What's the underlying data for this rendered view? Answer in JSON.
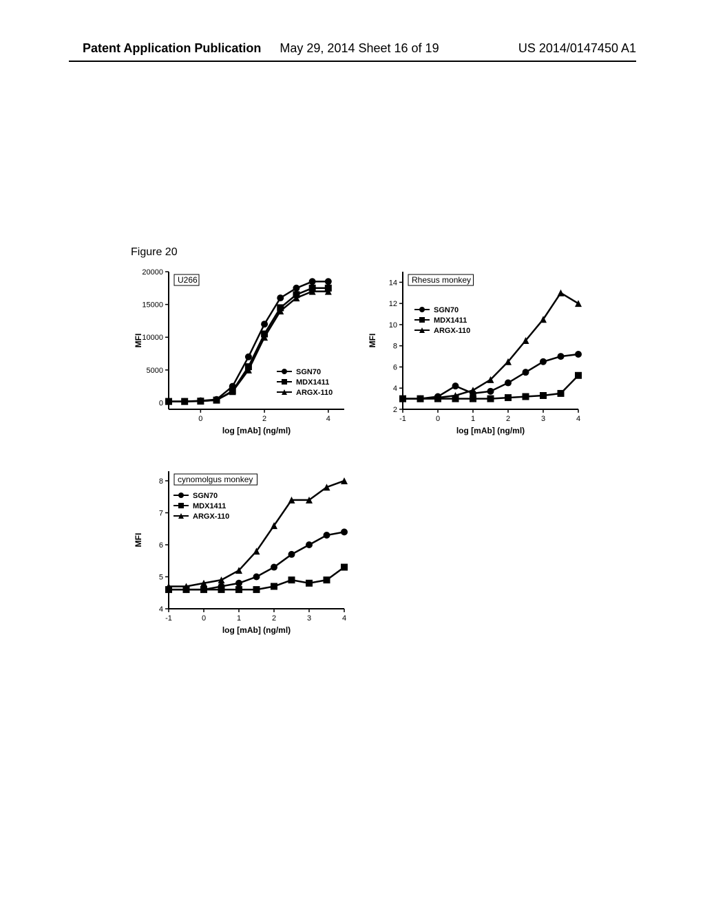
{
  "header": {
    "left": "Patent Application Publication",
    "mid": "May 29, 2014  Sheet 16 of 19",
    "right": "US 2014/0147450 A1"
  },
  "figure_label": "Figure 20",
  "common": {
    "xlabel": "log [mAb] (ng/ml)",
    "ylabel": "MFI",
    "legend_items": [
      "SGN70",
      "MDX1411",
      "ARGX-110"
    ],
    "legend_markers": [
      "circle",
      "square",
      "triangle"
    ],
    "line_color": "#000000",
    "line_width": 2.5,
    "marker_size": 5,
    "background": "#ffffff",
    "tick_color": "#000000",
    "tick_fontsize": 11,
    "label_fontsize": 12,
    "label_fontweight": "bold"
  },
  "charts": [
    {
      "id": "u266",
      "title": "U266",
      "xlim": [
        -1,
        4.5
      ],
      "xticks": [
        0,
        2,
        4
      ],
      "ylim": [
        -1000,
        20000
      ],
      "yticks": [
        0,
        5000,
        10000,
        15000,
        20000
      ],
      "legend_pos": "bottom-right",
      "series": [
        {
          "name": "SGN70",
          "marker": "circle",
          "x": [
            -1,
            -0.5,
            0,
            0.5,
            1,
            1.5,
            2,
            2.5,
            3,
            3.5,
            4
          ],
          "y": [
            200,
            200,
            300,
            500,
            2500,
            7000,
            12000,
            16000,
            17500,
            18500,
            18500
          ]
        },
        {
          "name": "MDX1411",
          "marker": "square",
          "x": [
            -1,
            -0.5,
            0,
            0.5,
            1,
            1.5,
            2,
            2.5,
            3,
            3.5,
            4
          ],
          "y": [
            200,
            200,
            250,
            400,
            1800,
            5500,
            10500,
            14500,
            16500,
            17500,
            17500
          ]
        },
        {
          "name": "ARGX-110",
          "marker": "triangle",
          "x": [
            -1,
            -0.5,
            0,
            0.5,
            1,
            1.5,
            2,
            2.5,
            3,
            3.5,
            4
          ],
          "y": [
            200,
            200,
            250,
            400,
            1700,
            5000,
            10000,
            14000,
            16000,
            17000,
            17000
          ]
        }
      ]
    },
    {
      "id": "rhesus",
      "title": "Rhesus monkey",
      "xlim": [
        -1,
        4
      ],
      "xticks": [
        -1,
        0,
        1,
        2,
        3,
        4
      ],
      "ylim": [
        2,
        15
      ],
      "yticks": [
        2,
        4,
        6,
        8,
        10,
        12,
        14
      ],
      "legend_pos": "mid-left",
      "series": [
        {
          "name": "SGN70",
          "marker": "circle",
          "x": [
            -1,
            -0.5,
            0,
            0.5,
            1,
            1.5,
            2,
            2.5,
            3,
            3.5,
            4
          ],
          "y": [
            3.0,
            3.0,
            3.2,
            4.2,
            3.5,
            3.7,
            4.5,
            5.5,
            6.5,
            7.0,
            7.2
          ]
        },
        {
          "name": "MDX1411",
          "marker": "square",
          "x": [
            -1,
            -0.5,
            0,
            0.5,
            1,
            1.5,
            2,
            2.5,
            3,
            3.5,
            4
          ],
          "y": [
            3.0,
            3.0,
            3.0,
            3.0,
            3.0,
            3.0,
            3.1,
            3.2,
            3.3,
            3.5,
            5.2
          ]
        },
        {
          "name": "ARGX-110",
          "marker": "triangle",
          "x": [
            -1,
            -0.5,
            0,
            0.5,
            1,
            1.5,
            2,
            2.5,
            3,
            3.5,
            4
          ],
          "y": [
            3.0,
            3.0,
            3.1,
            3.3,
            3.8,
            4.8,
            6.5,
            8.5,
            10.5,
            13.0,
            12.0
          ]
        }
      ]
    },
    {
      "id": "cyno",
      "title": "cynomolgus monkey",
      "xlim": [
        -1,
        4
      ],
      "xticks": [
        -1,
        0,
        1,
        2,
        3,
        4
      ],
      "ylim": [
        4,
        8.3
      ],
      "yticks": [
        4,
        5,
        6,
        7,
        8
      ],
      "legend_pos": "top-left",
      "series": [
        {
          "name": "SGN70",
          "marker": "circle",
          "x": [
            -1,
            -0.5,
            0,
            0.5,
            1,
            1.5,
            2,
            2.5,
            3,
            3.5,
            4
          ],
          "y": [
            4.6,
            4.6,
            4.6,
            4.7,
            4.8,
            5.0,
            5.3,
            5.7,
            6.0,
            6.3,
            6.4
          ]
        },
        {
          "name": "MDX1411",
          "marker": "square",
          "x": [
            -1,
            -0.5,
            0,
            0.5,
            1,
            1.5,
            2,
            2.5,
            3,
            3.5,
            4
          ],
          "y": [
            4.6,
            4.6,
            4.6,
            4.6,
            4.6,
            4.6,
            4.7,
            4.9,
            4.8,
            4.9,
            5.3
          ]
        },
        {
          "name": "ARGX-110",
          "marker": "triangle",
          "x": [
            -1,
            -0.5,
            0,
            0.5,
            1,
            1.5,
            2,
            2.5,
            3,
            3.5,
            4
          ],
          "y": [
            4.7,
            4.7,
            4.8,
            4.9,
            5.2,
            5.8,
            6.6,
            7.4,
            7.4,
            7.8,
            8.0
          ]
        }
      ]
    }
  ]
}
